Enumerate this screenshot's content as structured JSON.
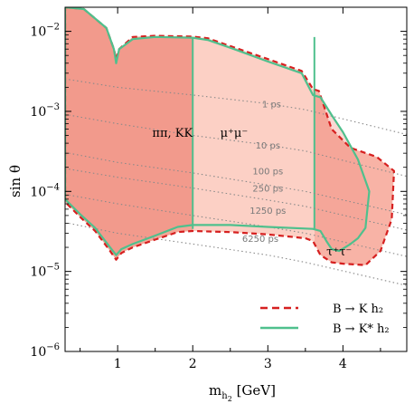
{
  "chart_data": {
    "type": "area",
    "xlabel": "m_{h_2} [GeV]",
    "ylabel": "sin θ",
    "xlim": [
      0.3,
      4.85
    ],
    "ylim": [
      1e-06,
      0.02
    ],
    "yscale": "log",
    "x_ticks": [
      1,
      2,
      3,
      4
    ],
    "y_ticks": [
      {
        "value": 0.01,
        "base": "10",
        "exp": "−2"
      },
      {
        "value": 0.001,
        "base": "10",
        "exp": "−3"
      },
      {
        "value": 0.0001,
        "base": "10",
        "exp": "−4"
      },
      {
        "value": 1e-05,
        "base": "10",
        "exp": "−5"
      },
      {
        "value": 1e-06,
        "base": "10",
        "exp": "−6"
      }
    ],
    "region_labels": [
      {
        "text": "ππ, KK",
        "x": 1.73,
        "y": 0.00055
      },
      {
        "text": "μ⁺μ⁻",
        "x": 2.55,
        "y": 0.00055
      },
      {
        "text": "τ⁺τ⁻",
        "x": 3.95,
        "y": 1.8e-05
      }
    ],
    "lifetime_contours": [
      {
        "label": "1 ps",
        "x": [
          0.35,
          1.0,
          2.0,
          3.0,
          3.5,
          4.9
        ],
        "y": [
          0.0025,
          0.002,
          0.0016,
          0.00125,
          0.00105,
          0.0005
        ],
        "label_x": 3.05,
        "label_y": 0.00125
      },
      {
        "label": "10 ps",
        "x": [
          0.35,
          1.0,
          2.0,
          3.0,
          3.5,
          4.9
        ],
        "y": [
          0.0009,
          0.0007,
          0.0005,
          0.00038,
          0.00032,
          0.00015
        ],
        "label_x": 3.0,
        "label_y": 0.00038
      },
      {
        "label": "100 ps",
        "x": [
          0.35,
          1.0,
          2.0,
          3.0,
          3.5,
          4.9
        ],
        "y": [
          0.0003,
          0.00023,
          0.00017,
          0.00012,
          0.0001,
          5e-05
        ],
        "label_x": 3.0,
        "label_y": 0.00018
      },
      {
        "label": "250 ps",
        "x": [
          0.35,
          1.0,
          2.0,
          3.0,
          3.5,
          4.9
        ],
        "y": [
          0.00019,
          0.00015,
          0.00011,
          7.8e-05,
          6.5e-05,
          3.2e-05
        ],
        "label_x": 3.0,
        "label_y": 0.00011
      },
      {
        "label": "1250 ps",
        "x": [
          0.35,
          1.0,
          2.0,
          3.0,
          3.5,
          4.9
        ],
        "y": [
          9e-05,
          7e-05,
          5e-05,
          3.6e-05,
          3e-05,
          1.5e-05
        ],
        "label_x": 3.0,
        "label_y": 5.8e-05
      },
      {
        "label": "6250 ps",
        "x": [
          0.35,
          1.0,
          2.0,
          3.0,
          3.5,
          4.9
        ],
        "y": [
          4e-05,
          3e-05,
          2.2e-05,
          1.6e-05,
          1.3e-05,
          6.5e-06
        ],
        "label_x": 2.9,
        "label_y": 2.6e-05
      }
    ],
    "series": [
      {
        "name": "B → K h₂",
        "style": "dashed",
        "color": "#d62020",
        "outline": [
          [
            0.3,
            0.02
          ],
          [
            0.55,
            0.019
          ],
          [
            0.85,
            0.011
          ],
          [
            0.95,
            0.006
          ],
          [
            0.98,
            0.0045
          ],
          [
            1.02,
            0.006
          ],
          [
            1.2,
            0.0085
          ],
          [
            1.5,
            0.0088
          ],
          [
            2.0,
            0.0086
          ],
          [
            2.2,
            0.0082
          ],
          [
            2.55,
            0.0063
          ],
          [
            3.0,
            0.0045
          ],
          [
            3.45,
            0.0032
          ],
          [
            3.6,
            0.0019
          ],
          [
            3.68,
            0.0018
          ],
          [
            3.85,
            0.0006
          ],
          [
            4.1,
            0.00035
          ],
          [
            4.45,
            0.00027
          ],
          [
            4.68,
            0.00018
          ],
          [
            4.65,
            4.5e-05
          ],
          [
            4.5,
            1.8e-05
          ],
          [
            4.3,
            1.2e-05
          ],
          [
            4.0,
            1.25e-05
          ],
          [
            3.85,
            1.3e-05
          ],
          [
            3.7,
            1.6e-05
          ],
          [
            3.6,
            2.4e-05
          ],
          [
            3.5,
            2.6e-05
          ],
          [
            3.0,
            2.9e-05
          ],
          [
            2.5,
            3.1e-05
          ],
          [
            2.0,
            3.2e-05
          ],
          [
            1.8,
            3.1e-05
          ],
          [
            1.5,
            2.5e-05
          ],
          [
            1.2,
            2e-05
          ],
          [
            1.05,
            1.7e-05
          ],
          [
            0.98,
            1.4e-05
          ],
          [
            0.9,
            1.8e-05
          ],
          [
            0.7,
            3.2e-05
          ],
          [
            0.5,
            4.8e-05
          ],
          [
            0.3,
            7.4e-05
          ]
        ]
      },
      {
        "name": "B → K* h₂",
        "style": "solid",
        "color": "#4fc08d",
        "outline": [
          [
            0.3,
            0.02
          ],
          [
            0.55,
            0.019
          ],
          [
            0.85,
            0.011
          ],
          [
            0.95,
            0.006
          ],
          [
            0.98,
            0.004
          ],
          [
            1.02,
            0.006
          ],
          [
            1.2,
            0.008
          ],
          [
            1.5,
            0.0085
          ],
          [
            2.0,
            0.0083
          ],
          [
            2.2,
            0.0078
          ],
          [
            2.55,
            0.006
          ],
          [
            3.0,
            0.0042
          ],
          [
            3.45,
            0.003
          ],
          [
            3.6,
            0.0016
          ],
          [
            3.7,
            0.0015
          ],
          [
            3.85,
            0.0009
          ],
          [
            4.0,
            0.00055
          ],
          [
            4.2,
            0.00025
          ],
          [
            4.35,
            0.0001
          ],
          [
            4.3,
            3.5e-05
          ],
          [
            4.2,
            2.6e-05
          ],
          [
            4.1,
            2.2e-05
          ],
          [
            3.95,
            1.8e-05
          ],
          [
            3.85,
            1.9e-05
          ],
          [
            3.78,
            2.4e-05
          ],
          [
            3.7,
            3.2e-05
          ],
          [
            3.6,
            3.4e-05
          ],
          [
            3.0,
            3.6e-05
          ],
          [
            2.5,
            3.8e-05
          ],
          [
            2.0,
            3.8e-05
          ],
          [
            1.8,
            3.6e-05
          ],
          [
            1.5,
            2.8e-05
          ],
          [
            1.2,
            2.2e-05
          ],
          [
            1.05,
            1.9e-05
          ],
          [
            0.98,
            1.6e-05
          ],
          [
            0.9,
            2e-05
          ],
          [
            0.7,
            3.5e-05
          ],
          [
            0.5,
            5.2e-05
          ],
          [
            0.3,
            8e-05
          ]
        ]
      }
    ],
    "band_dividers": [
      2.0,
      3.62
    ],
    "band_colors": {
      "hadronic": "#f5a596",
      "muon": "#fcd0c5",
      "tau": "#f8b3a6"
    },
    "legend": {
      "placement": "bottom-right"
    },
    "grid": false
  }
}
